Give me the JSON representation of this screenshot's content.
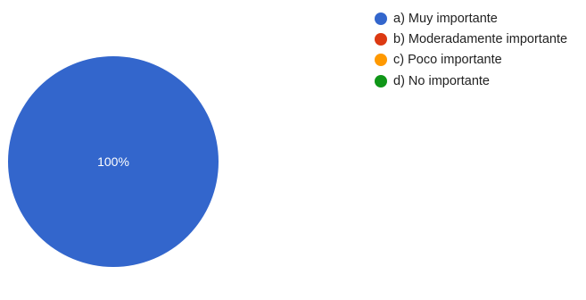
{
  "chart_data": {
    "type": "pie",
    "categories": [
      "a) Muy importante",
      "b) Moderadamente importante",
      "c) Poco importante",
      "d) No importante"
    ],
    "values": [
      100,
      0,
      0,
      0
    ],
    "colors": [
      "#3366cc",
      "#dc3912",
      "#ff9900",
      "#109618"
    ],
    "data_labels": [
      "100%",
      "",
      "",
      ""
    ],
    "legend_position": "right"
  }
}
